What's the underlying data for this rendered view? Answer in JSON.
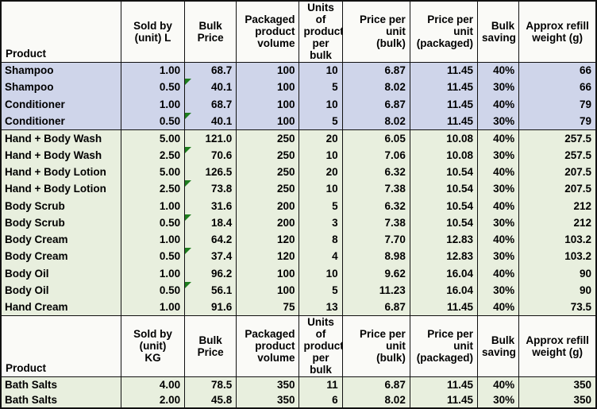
{
  "colors": {
    "row_blue": "#cfd5ea",
    "row_green": "#e8efde",
    "header_bg": "#fafaf7",
    "grid_border": "#111111",
    "error_flag_green": "#1e7d1e",
    "text": "#000000"
  },
  "chart_data": [
    {
      "type": "table",
      "name": "liquid-products-bulk-pricing",
      "unit": "L",
      "columns": [
        "Product",
        "Sold by (unit) L",
        "Bulk Price",
        "Packaged product volume",
        "Units of product per bulk",
        "Price per unit (bulk)",
        "Price per unit (packaged)",
        "Bulk saving",
        "Approx refill weight (g)"
      ],
      "column_lines": [
        "Product",
        "Sold by\n(unit) L",
        "Bulk\nPrice",
        "Packaged\nproduct\nvolume",
        "Units of\nproduct\nper bulk",
        "Price per\nunit\n(bulk)",
        "Price per\nunit\n(packaged)",
        "Bulk\nsaving",
        "Approx refill\nweight (g)"
      ],
      "rows": [
        [
          "Shampoo",
          "1.00",
          "68.7",
          "100",
          "10",
          "6.87",
          "11.45",
          "40%",
          "66"
        ],
        [
          "Shampoo",
          "0.50",
          "40.1",
          "100",
          "5",
          "8.02",
          "11.45",
          "30%",
          "66"
        ],
        [
          "Conditioner",
          "1.00",
          "68.7",
          "100",
          "10",
          "6.87",
          "11.45",
          "40%",
          "79"
        ],
        [
          "Conditioner",
          "0.50",
          "40.1",
          "100",
          "5",
          "8.02",
          "11.45",
          "30%",
          "79"
        ],
        [
          "Hand + Body Wash",
          "5.00",
          "121.0",
          "250",
          "20",
          "6.05",
          "10.08",
          "40%",
          "257.5"
        ],
        [
          "Hand + Body Wash",
          "2.50",
          "70.6",
          "250",
          "10",
          "7.06",
          "10.08",
          "30%",
          "257.5"
        ],
        [
          "Hand + Body Lotion",
          "5.00",
          "126.5",
          "250",
          "20",
          "6.32",
          "10.54",
          "40%",
          "207.5"
        ],
        [
          "Hand + Body Lotion",
          "2.50",
          "73.8",
          "250",
          "10",
          "7.38",
          "10.54",
          "30%",
          "207.5"
        ],
        [
          "Body Scrub",
          "1.00",
          "31.6",
          "200",
          "5",
          "6.32",
          "10.54",
          "40%",
          "212"
        ],
        [
          "Body Scrub",
          "0.50",
          "18.4",
          "200",
          "3",
          "7.38",
          "10.54",
          "30%",
          "212"
        ],
        [
          "Body Cream",
          "1.00",
          "64.2",
          "120",
          "8",
          "7.70",
          "12.83",
          "40%",
          "103.2"
        ],
        [
          "Body Cream",
          "0.50",
          "37.4",
          "120",
          "4",
          "8.98",
          "12.83",
          "30%",
          "103.2"
        ],
        [
          "Body Oil",
          "1.00",
          "96.2",
          "100",
          "10",
          "9.62",
          "16.04",
          "40%",
          "90"
        ],
        [
          "Body Oil",
          "0.50",
          "56.1",
          "100",
          "5",
          "11.23",
          "16.04",
          "30%",
          "90"
        ],
        [
          "Hand Cream",
          "1.00",
          "91.6",
          "75",
          "13",
          "6.87",
          "11.45",
          "40%",
          "73.5"
        ]
      ],
      "row_tone": [
        "blue",
        "blue",
        "blue",
        "blue",
        "green",
        "green",
        "green",
        "green",
        "green",
        "green",
        "green",
        "green",
        "green",
        "green",
        "green"
      ],
      "error_flag_rows": [
        1,
        3,
        5,
        7,
        9,
        11,
        13
      ],
      "error_flag_column": "Bulk Price"
    },
    {
      "type": "table",
      "name": "weight-products-bulk-pricing",
      "unit": "KG",
      "columns": [
        "Product",
        "Sold by (unit) KG",
        "Bulk Price",
        "Packaged product volume",
        "Units of product per bulk",
        "Price per unit (bulk)",
        "Price per unit (packaged)",
        "Bulk saving",
        "Approx refill weight (g)"
      ],
      "column_lines": [
        "Product",
        "Sold by\n(unit)\nKG",
        "Bulk\nPrice",
        "Packaged\nproduct\nvolume",
        "Units of\nproduct\nper bulk",
        "Price per\nunit\n(bulk)",
        "Price per\nunit\n(packaged)",
        "Bulk\nsaving",
        "Approx refill\nweight (g)"
      ],
      "rows": [
        [
          "Bath Salts",
          "4.00",
          "78.5",
          "350",
          "11",
          "6.87",
          "11.45",
          "40%",
          "350"
        ],
        [
          "Bath Salts",
          "2.00",
          "45.8",
          "350",
          "6",
          "8.02",
          "11.45",
          "30%",
          "350"
        ]
      ],
      "row_tone": [
        "green",
        "green"
      ],
      "error_flag_rows": [],
      "error_flag_column": "Bulk Price"
    }
  ]
}
